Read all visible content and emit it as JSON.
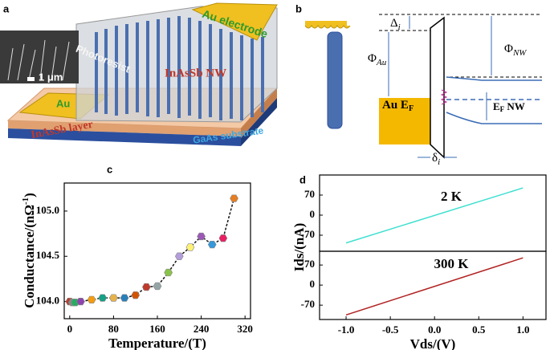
{
  "panel_a": {
    "label": "a",
    "scale_bar": "1 μm",
    "electrode_top": "Au electrode",
    "photoresist": "Photoresist",
    "nanowires": "InAsSb NW",
    "electrode_left": "Au",
    "layer": "InAsSb layer",
    "substrate": "GaAs substrate"
  },
  "panel_b": {
    "label": "b",
    "delta": {
      "symbol": "Δ",
      "sub": "i"
    },
    "phi_au": {
      "symbol": "Φ",
      "sub": "Au"
    },
    "phi_nw": {
      "symbol": "Φ",
      "sub": "NW"
    },
    "au_ef": {
      "text": "Au E",
      "sub": "F"
    },
    "ef_nw": {
      "text": "E",
      "sub": "F",
      "suffix": " NW"
    },
    "gap": {
      "symbol": "δ",
      "sub": "i"
    }
  },
  "chart_data": [
    {
      "type": "line",
      "panel": "c",
      "x_label": "Temperature/(T)",
      "y_label": {
        "text": "Conductance/(nΩ",
        "sup": "-1",
        "end": ")"
      },
      "x": [
        0,
        5,
        10,
        20,
        40,
        60,
        80,
        100,
        120,
        140,
        160,
        180,
        200,
        220,
        240,
        260,
        280,
        300
      ],
      "series": [
        {
          "values": [
            104.0,
            103.99,
            103.99,
            104.0,
            104.02,
            104.04,
            104.04,
            104.04,
            104.07,
            104.16,
            104.17,
            104.32,
            104.5,
            104.6,
            104.72,
            104.63,
            104.7,
            105.14
          ],
          "color": "#111111",
          "marker_colors": [
            "#c0392b",
            "#7f8c8d",
            "#27ae60",
            "#8e44ad",
            "#f39c12",
            "#16a085",
            "#e6b34a",
            "#2980b9",
            "#d35400",
            "#c0392b",
            "#95a5a6",
            "#8bc34a",
            "#b39ddb",
            "#fff176",
            "#9b59b6",
            "#3498db",
            "#e91e63",
            "#e67e22"
          ]
        }
      ],
      "xlim": [
        -10,
        330
      ],
      "xticks": [
        0,
        80,
        160,
        240,
        320
      ],
      "ylim": [
        103.81,
        105.31
      ],
      "yticks": [
        {
          "value": 104.0,
          "label": "104.0"
        },
        {
          "value": 104.5,
          "label": "104.5"
        },
        {
          "value": 105.0,
          "label": "105.0"
        }
      ]
    },
    {
      "type": "line",
      "panel": "d",
      "y_label": "Ids/(nA)",
      "annotation": "2 K",
      "x": [
        -1.0,
        1.0
      ],
      "series": [
        {
          "values": [
            -97,
            95
          ],
          "color": "#40e0d0"
        }
      ],
      "xlim": [
        -1.3,
        1.26
      ],
      "ylim": [
        -126,
        140
      ],
      "yticks": [
        70,
        0,
        -70
      ]
    },
    {
      "type": "line",
      "annotation": "300 K",
      "x_label": "Vds/(V)",
      "x": [
        -1.0,
        1.0
      ],
      "series": [
        {
          "values": [
            -104,
            95
          ],
          "color": "#b22222"
        }
      ],
      "xlim": [
        -1.3,
        1.26
      ],
      "xticks": [
        {
          "value": -1.0,
          "label": "-1.0"
        },
        {
          "value": -0.5,
          "label": "-0.5"
        },
        {
          "value": 0.0,
          "label": "0.0"
        },
        {
          "value": 0.5,
          "label": "0.5"
        },
        {
          "value": 1.0,
          "label": "1.0"
        }
      ],
      "ylim": [
        -120,
        118
      ],
      "yticks": [
        70,
        0,
        -70
      ]
    }
  ]
}
